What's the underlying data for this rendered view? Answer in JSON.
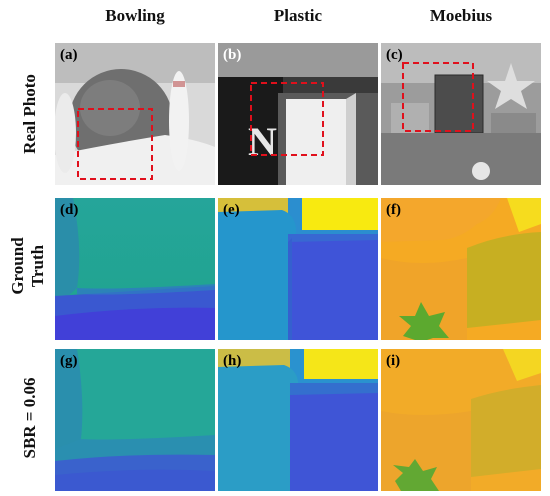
{
  "columns": [
    "Bowling",
    "Plastic",
    "Moebius"
  ],
  "rows": [
    "Real Photo",
    "Ground Truth",
    "SBR = 0.06"
  ],
  "panels": {
    "a": "(a)",
    "b": "(b)",
    "c": "(c)",
    "d": "(d)",
    "e": "(e)",
    "f": "(f)",
    "g": "(g)",
    "h": "(h)",
    "i": "(i)"
  }
}
